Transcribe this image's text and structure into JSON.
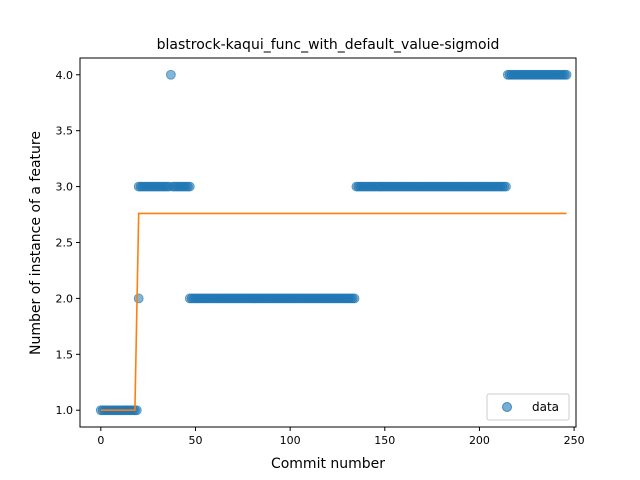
{
  "chart_data": {
    "type": "scatter",
    "title": "blastrock-kaqui_func_with_default_value-sigmoid",
    "xlabel": "Commit number",
    "ylabel": "Number of instance of a feature",
    "xlim": [
      -11,
      251
    ],
    "ylim": [
      0.85,
      4.15
    ],
    "xticks": [
      0,
      50,
      100,
      150,
      200,
      250
    ],
    "yticks": [
      1.0,
      1.5,
      2.0,
      2.5,
      3.0,
      3.5,
      4.0
    ],
    "xtick_labels": [
      "0",
      "50",
      "100",
      "150",
      "200",
      "250"
    ],
    "ytick_labels": [
      "1.0",
      "1.5",
      "2.0",
      "2.5",
      "3.0",
      "3.5",
      "4.0"
    ],
    "grid": false,
    "legend_position": "lower-right",
    "series": [
      {
        "name": "data",
        "kind": "scatter",
        "color": "#1f77b4",
        "segments": [
          {
            "x_start": 0,
            "x_end": 19,
            "y": 1.0
          },
          {
            "x_start": 20,
            "x_end": 20,
            "y": 2.0
          },
          {
            "x_start": 20,
            "x_end": 47,
            "y": 3.0,
            "skip": [
              37
            ]
          },
          {
            "x_start": 37,
            "x_end": 37,
            "y": 4.0
          },
          {
            "x_start": 47,
            "x_end": 134,
            "y": 2.0
          },
          {
            "x_start": 135,
            "x_end": 214,
            "y": 3.0
          },
          {
            "x_start": 215,
            "x_end": 246,
            "y": 4.0
          }
        ]
      },
      {
        "name": "",
        "kind": "line",
        "color": "#ff7f0e",
        "points": [
          [
            0,
            1.0
          ],
          [
            18,
            1.0
          ],
          [
            20,
            2.76
          ],
          [
            246,
            2.76
          ]
        ]
      }
    ]
  }
}
